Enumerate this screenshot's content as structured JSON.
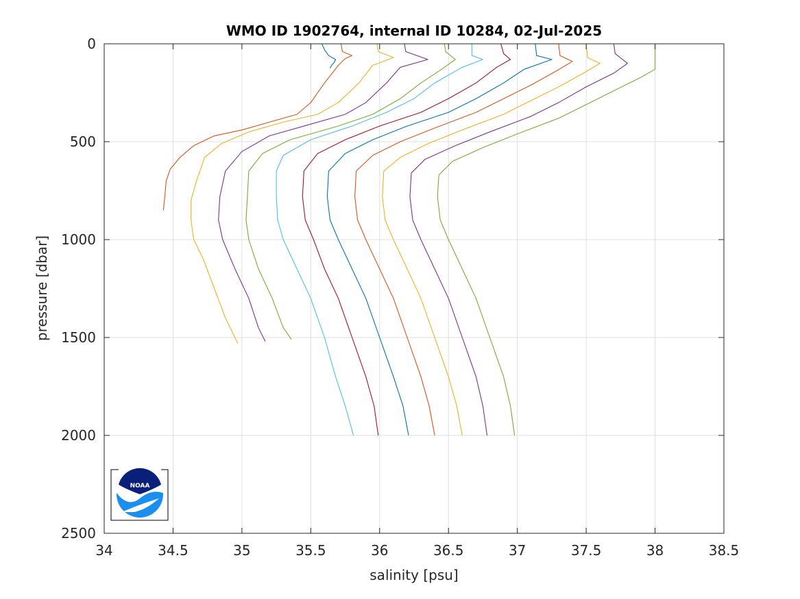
{
  "chart_data": {
    "type": "line",
    "title": "WMO ID 1902764, internal ID 10284, 02-Jul-2025",
    "xlabel": "salinity [psu]",
    "ylabel": "pressure [dbar]",
    "xlim": [
      34,
      38.5
    ],
    "ylim": [
      0,
      2500
    ],
    "y_reversed": true,
    "grid": true,
    "x_ticks": [
      "34",
      "34.5",
      "35",
      "35.5",
      "36",
      "36.5",
      "37",
      "37.5",
      "38",
      "38.5"
    ],
    "y_ticks": [
      "0",
      "500",
      "1000",
      "1500",
      "2000",
      "2500"
    ],
    "logo": "noaa-logo",
    "series": [
      {
        "color": "#0072BD",
        "points": [
          [
            35.58,
            0
          ],
          [
            35.6,
            30
          ],
          [
            35.63,
            60
          ],
          [
            35.68,
            80
          ],
          [
            35.67,
            95
          ],
          [
            35.65,
            110
          ],
          [
            35.64,
            125
          ]
        ]
      },
      {
        "color": "#D95319",
        "points": [
          [
            35.72,
            0
          ],
          [
            35.73,
            40
          ],
          [
            35.8,
            60
          ],
          [
            35.75,
            75
          ],
          [
            35.7,
            110
          ],
          [
            35.6,
            200
          ],
          [
            35.5,
            300
          ],
          [
            35.4,
            360
          ],
          [
            35.2,
            400
          ],
          [
            35.0,
            440
          ],
          [
            34.8,
            470
          ],
          [
            34.65,
            520
          ],
          [
            34.55,
            580
          ],
          [
            34.48,
            640
          ],
          [
            34.45,
            700
          ],
          [
            34.44,
            780
          ],
          [
            34.43,
            850
          ]
        ]
      },
      {
        "color": "#EDB120",
        "points": [
          [
            35.98,
            0
          ],
          [
            35.99,
            40
          ],
          [
            36.1,
            70
          ],
          [
            35.95,
            110
          ],
          [
            35.85,
            200
          ],
          [
            35.7,
            300
          ],
          [
            35.55,
            360
          ],
          [
            35.3,
            400
          ],
          [
            35.05,
            450
          ],
          [
            34.85,
            510
          ],
          [
            34.73,
            580
          ],
          [
            34.67,
            700
          ],
          [
            34.63,
            800
          ],
          [
            34.63,
            900
          ],
          [
            34.65,
            1000
          ],
          [
            34.72,
            1100
          ],
          [
            34.8,
            1250
          ],
          [
            34.88,
            1400
          ],
          [
            34.97,
            1530
          ]
        ]
      },
      {
        "color": "#7E2F8E",
        "points": [
          [
            36.18,
            0
          ],
          [
            36.19,
            40
          ],
          [
            36.35,
            80
          ],
          [
            36.15,
            120
          ],
          [
            36.05,
            200
          ],
          [
            35.9,
            300
          ],
          [
            35.75,
            360
          ],
          [
            35.5,
            410
          ],
          [
            35.2,
            470
          ],
          [
            35.0,
            550
          ],
          [
            34.88,
            650
          ],
          [
            34.84,
            780
          ],
          [
            34.83,
            900
          ],
          [
            34.86,
            1000
          ],
          [
            34.95,
            1150
          ],
          [
            35.05,
            1300
          ],
          [
            35.12,
            1450
          ],
          [
            35.17,
            1520
          ]
        ]
      },
      {
        "color": "#77AC30",
        "points": [
          [
            36.47,
            0
          ],
          [
            36.48,
            40
          ],
          [
            36.55,
            80
          ],
          [
            36.45,
            130
          ],
          [
            36.3,
            200
          ],
          [
            36.15,
            280
          ],
          [
            35.95,
            360
          ],
          [
            35.7,
            420
          ],
          [
            35.35,
            490
          ],
          [
            35.15,
            560
          ],
          [
            35.05,
            650
          ],
          [
            35.04,
            780
          ],
          [
            35.03,
            900
          ],
          [
            35.05,
            1000
          ],
          [
            35.12,
            1150
          ],
          [
            35.22,
            1300
          ],
          [
            35.3,
            1450
          ],
          [
            35.36,
            1510
          ]
        ]
      },
      {
        "color": "#4DBEEE",
        "points": [
          [
            36.67,
            0
          ],
          [
            36.67,
            60
          ],
          [
            36.75,
            80
          ],
          [
            36.6,
            120
          ],
          [
            36.4,
            200
          ],
          [
            36.25,
            280
          ],
          [
            36.05,
            350
          ],
          [
            35.8,
            420
          ],
          [
            35.5,
            490
          ],
          [
            35.3,
            570
          ],
          [
            35.25,
            650
          ],
          [
            35.25,
            780
          ],
          [
            35.26,
            900
          ],
          [
            35.3,
            1000
          ],
          [
            35.4,
            1150
          ],
          [
            35.5,
            1300
          ],
          [
            35.6,
            1500
          ],
          [
            35.68,
            1700
          ],
          [
            35.75,
            1850
          ],
          [
            35.81,
            2000
          ]
        ]
      },
      {
        "color": "#A2142F",
        "points": [
          [
            36.88,
            0
          ],
          [
            36.9,
            50
          ],
          [
            36.95,
            80
          ],
          [
            36.85,
            120
          ],
          [
            36.7,
            200
          ],
          [
            36.5,
            280
          ],
          [
            36.3,
            350
          ],
          [
            36.0,
            420
          ],
          [
            35.75,
            490
          ],
          [
            35.55,
            560
          ],
          [
            35.45,
            650
          ],
          [
            35.44,
            780
          ],
          [
            35.46,
            900
          ],
          [
            35.52,
            1000
          ],
          [
            35.6,
            1150
          ],
          [
            35.7,
            1300
          ],
          [
            35.8,
            1500
          ],
          [
            35.9,
            1700
          ],
          [
            35.96,
            1850
          ],
          [
            35.99,
            2000
          ]
        ]
      },
      {
        "color": "#0072BD",
        "points": [
          [
            37.13,
            0
          ],
          [
            37.14,
            60
          ],
          [
            37.25,
            80
          ],
          [
            37.05,
            130
          ],
          [
            36.9,
            200
          ],
          [
            36.7,
            280
          ],
          [
            36.5,
            350
          ],
          [
            36.2,
            420
          ],
          [
            35.95,
            490
          ],
          [
            35.75,
            560
          ],
          [
            35.63,
            650
          ],
          [
            35.62,
            780
          ],
          [
            35.64,
            900
          ],
          [
            35.7,
            1000
          ],
          [
            35.8,
            1150
          ],
          [
            35.9,
            1300
          ],
          [
            36.0,
            1500
          ],
          [
            36.1,
            1700
          ],
          [
            36.17,
            1850
          ],
          [
            36.21,
            2000
          ]
        ]
      },
      {
        "color": "#D95319",
        "points": [
          [
            37.3,
            0
          ],
          [
            37.31,
            60
          ],
          [
            37.4,
            90
          ],
          [
            37.28,
            140
          ],
          [
            37.1,
            210
          ],
          [
            36.9,
            280
          ],
          [
            36.7,
            350
          ],
          [
            36.4,
            430
          ],
          [
            36.15,
            500
          ],
          [
            35.95,
            570
          ],
          [
            35.83,
            650
          ],
          [
            35.82,
            780
          ],
          [
            35.84,
            900
          ],
          [
            35.9,
            1000
          ],
          [
            36.0,
            1150
          ],
          [
            36.1,
            1300
          ],
          [
            36.2,
            1500
          ],
          [
            36.3,
            1700
          ],
          [
            36.36,
            1850
          ],
          [
            36.4,
            2000
          ]
        ]
      },
      {
        "color": "#EDB120",
        "points": [
          [
            37.5,
            0
          ],
          [
            37.51,
            70
          ],
          [
            37.6,
            100
          ],
          [
            37.48,
            150
          ],
          [
            37.3,
            220
          ],
          [
            37.1,
            290
          ],
          [
            36.9,
            360
          ],
          [
            36.6,
            440
          ],
          [
            36.35,
            510
          ],
          [
            36.15,
            580
          ],
          [
            36.03,
            650
          ],
          [
            36.02,
            780
          ],
          [
            36.04,
            900
          ],
          [
            36.1,
            1000
          ],
          [
            36.2,
            1150
          ],
          [
            36.3,
            1300
          ],
          [
            36.4,
            1500
          ],
          [
            36.5,
            1700
          ],
          [
            36.56,
            1850
          ],
          [
            36.6,
            2000
          ]
        ]
      },
      {
        "color": "#7E2F8E",
        "points": [
          [
            37.7,
            0
          ],
          [
            37.71,
            50
          ],
          [
            37.8,
            100
          ],
          [
            37.7,
            150
          ],
          [
            37.5,
            220
          ],
          [
            37.3,
            300
          ],
          [
            37.1,
            370
          ],
          [
            36.8,
            450
          ],
          [
            36.55,
            520
          ],
          [
            36.33,
            590
          ],
          [
            36.23,
            660
          ],
          [
            36.22,
            780
          ],
          [
            36.24,
            900
          ],
          [
            36.3,
            1000
          ],
          [
            36.4,
            1150
          ],
          [
            36.5,
            1300
          ],
          [
            36.6,
            1500
          ],
          [
            36.7,
            1700
          ],
          [
            36.75,
            1850
          ],
          [
            36.78,
            2000
          ]
        ]
      },
      {
        "color": "#77AC30",
        "points": [
          [
            38.0,
            0
          ],
          [
            38.0,
            130
          ],
          [
            37.9,
            170
          ],
          [
            37.7,
            240
          ],
          [
            37.5,
            310
          ],
          [
            37.3,
            380
          ],
          [
            37.0,
            460
          ],
          [
            36.75,
            530
          ],
          [
            36.53,
            600
          ],
          [
            36.43,
            670
          ],
          [
            36.42,
            780
          ],
          [
            36.44,
            900
          ],
          [
            36.5,
            1000
          ],
          [
            36.6,
            1150
          ],
          [
            36.7,
            1300
          ],
          [
            36.8,
            1500
          ],
          [
            36.9,
            1700
          ],
          [
            36.95,
            1850
          ],
          [
            36.98,
            2000
          ]
        ]
      }
    ]
  }
}
